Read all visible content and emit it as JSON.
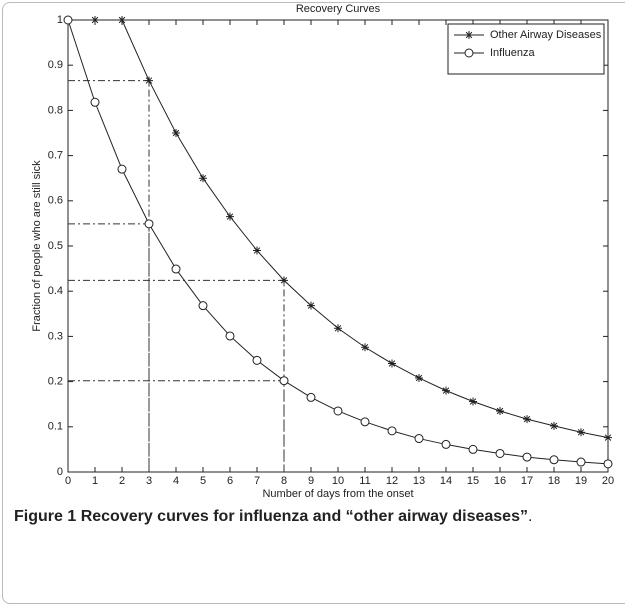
{
  "chart_data": {
    "type": "line",
    "title": "Recovery Curves",
    "x_label": "Number of days from the onset",
    "y_label": "Fraction of people who are still sick",
    "x": [
      0,
      1,
      2,
      3,
      4,
      5,
      6,
      7,
      8,
      9,
      10,
      11,
      12,
      13,
      14,
      15,
      16,
      17,
      18,
      19,
      20
    ],
    "series": [
      {
        "name": "Other Airway Diseases",
        "color": "#222222",
        "marker": "asterisk",
        "values": [
          1,
          1,
          1,
          0.866,
          0.75,
          0.65,
          0.565,
          0.49,
          0.424,
          0.368,
          0.318,
          0.276,
          0.24,
          0.208,
          0.18,
          0.156,
          0.135,
          0.117,
          0.102,
          0.088,
          0.076
        ]
      },
      {
        "name": "Influenza",
        "color": "#222222",
        "marker": "circle",
        "values": [
          1,
          0.818,
          0.67,
          0.549,
          0.449,
          0.368,
          0.301,
          0.247,
          0.202,
          0.165,
          0.135,
          0.111,
          0.091,
          0.074,
          0.061,
          0.05,
          0.041,
          0.033,
          0.027,
          0.022,
          0.018
        ]
      }
    ],
    "guides": [
      {
        "x": 3,
        "y": 0.866
      },
      {
        "x": 3,
        "y": 0.549
      },
      {
        "x": 8,
        "y": 0.424
      },
      {
        "x": 8,
        "y": 0.202
      }
    ],
    "xlim": [
      0,
      20
    ],
    "xticks": [
      0,
      1,
      2,
      3,
      4,
      5,
      6,
      7,
      8,
      9,
      10,
      11,
      12,
      13,
      14,
      15,
      16,
      17,
      18,
      19,
      20
    ],
    "ylim": [
      0,
      1
    ],
    "yticks": [
      0,
      0.1,
      0.2,
      0.3,
      0.4,
      0.5,
      0.6,
      0.7,
      0.8,
      0.9,
      1
    ],
    "legend": "upper right",
    "grid": false
  },
  "caption": {
    "label": "Figure 1",
    "text": "Recovery curves for influenza and “other airway diseases”",
    "end": "."
  }
}
